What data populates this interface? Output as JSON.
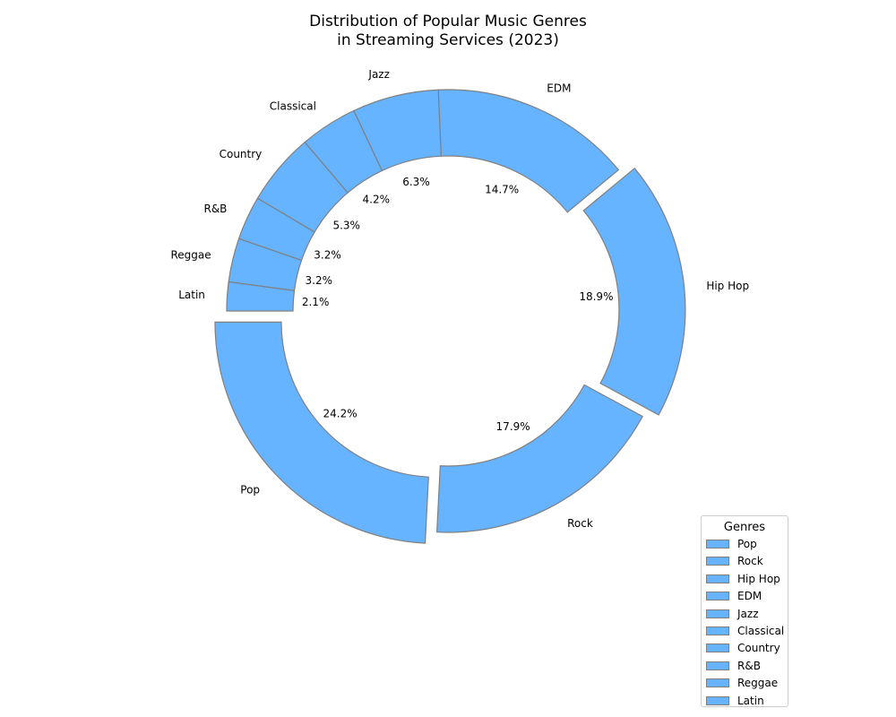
{
  "chart_data": {
    "type": "pie",
    "style": "donut",
    "title_line1": "Distribution of Popular Music Genres",
    "title_line2": "in Streaming Services (2023)",
    "slice_color": "#66b3ff",
    "edge_color": "#808080",
    "exploded": [
      "Pop",
      "Hip Hop"
    ],
    "categories": [
      "Pop",
      "Rock",
      "Hip Hop",
      "EDM",
      "Jazz",
      "Classical",
      "Country",
      "R&B",
      "Reggae",
      "Latin"
    ],
    "values": [
      24.2,
      17.9,
      18.9,
      14.7,
      6.3,
      4.2,
      5.3,
      3.2,
      3.2,
      2.1
    ],
    "value_labels": [
      "24.2%",
      "17.9%",
      "18.9%",
      "14.7%",
      "6.3%",
      "4.2%",
      "5.3%",
      "3.2%",
      "3.2%",
      "2.1%"
    ],
    "legend": {
      "title": "Genres",
      "placement": "lower-right",
      "entries": [
        "Pop",
        "Rock",
        "Hip Hop",
        "EDM",
        "Jazz",
        "Classical",
        "Country",
        "R&B",
        "Reggae",
        "Latin"
      ]
    }
  }
}
